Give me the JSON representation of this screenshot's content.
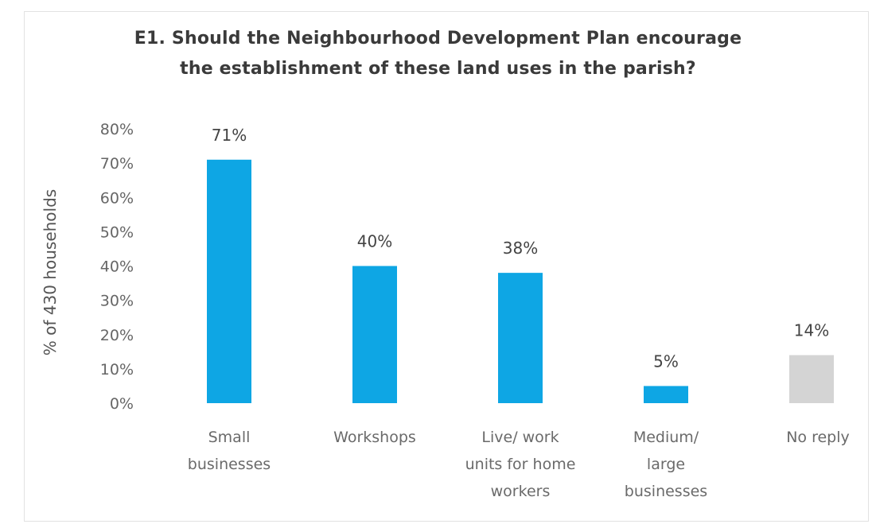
{
  "chart_data": {
    "type": "bar",
    "title_lines": [
      "E1. Should the Neighbourhood Development Plan encourage",
      "the establishment of these land uses in the parish?"
    ],
    "ylabel": "% of 430 households",
    "ylim": [
      0,
      80
    ],
    "yticks": [
      "0%",
      "10%",
      "20%",
      "30%",
      "40%",
      "50%",
      "60%",
      "70%",
      "80%"
    ],
    "categories": [
      [
        "Small",
        "businesses"
      ],
      [
        "Workshops"
      ],
      [
        "Live/ work",
        "units for home",
        "workers"
      ],
      [
        "Medium/",
        "large",
        "businesses"
      ],
      [
        "No reply"
      ]
    ],
    "values": [
      71,
      40,
      38,
      5,
      14
    ],
    "data_labels": [
      "71%",
      "40%",
      "38%",
      "5%",
      "14%"
    ],
    "bar_colors": [
      "#0ea6e4",
      "#0ea6e4",
      "#0ea6e4",
      "#0ea6e4",
      "#d4d4d4"
    ],
    "grid": false,
    "legend": "none"
  }
}
